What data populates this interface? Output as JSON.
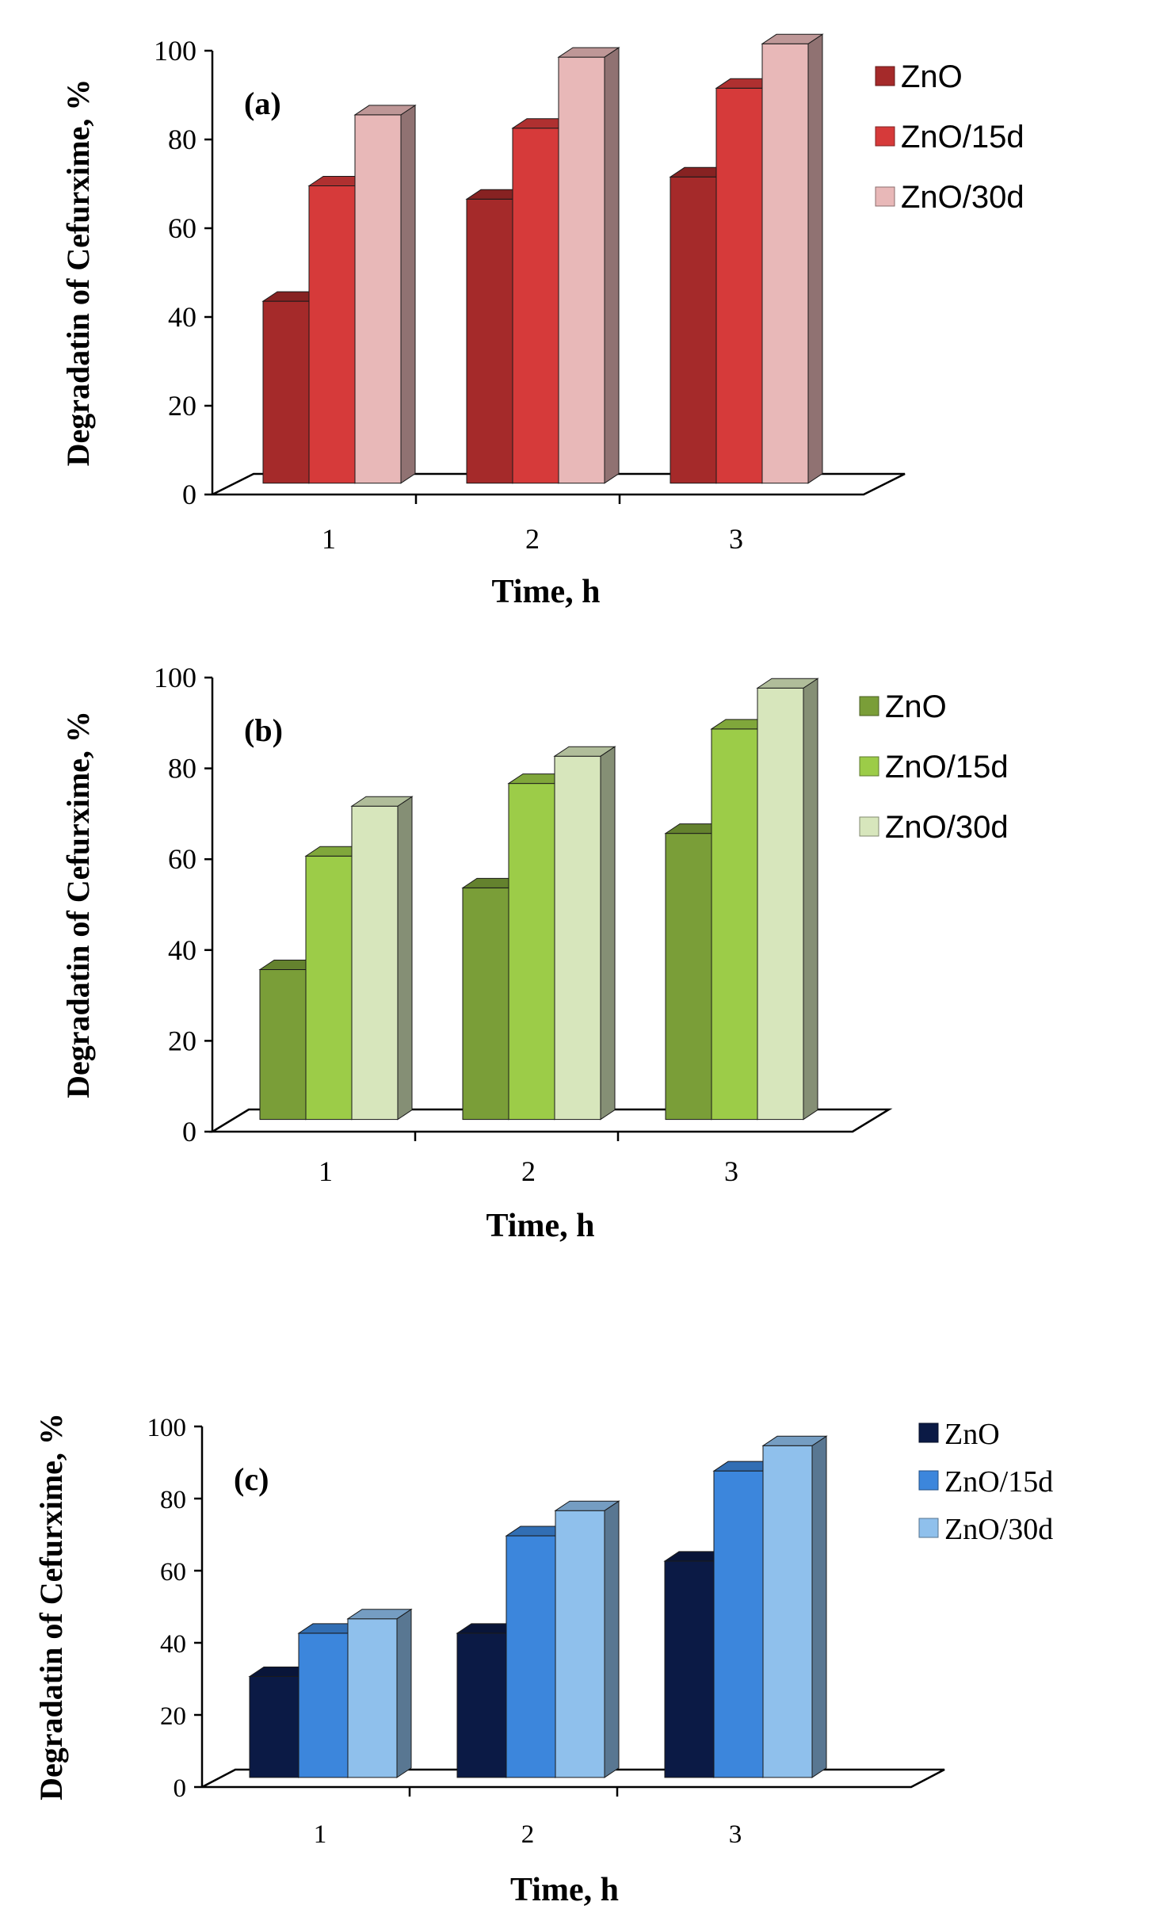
{
  "figure": {
    "description_free": true
  },
  "chart_data": [
    {
      "type": "bar",
      "panel_label": "(a)",
      "title": "",
      "xlabel": "Time, h",
      "ylabel": "Degradatin of Cefurxime, %",
      "categories": [
        "1",
        "2",
        "3"
      ],
      "yticks": [
        "0",
        "20",
        "40",
        "60",
        "80",
        "100"
      ],
      "ylim": [
        0,
        100
      ],
      "grid": false,
      "legend_position": "right",
      "series": [
        {
          "name": "ZnO",
          "color": "#a52a2a",
          "values": [
            41,
            64,
            69
          ]
        },
        {
          "name": "ZnO/15d",
          "color": "#d63a3a",
          "values": [
            67,
            80,
            89
          ]
        },
        {
          "name": "ZnO/30d",
          "color": "#e8b8b8",
          "values": [
            83,
            96,
            99
          ]
        }
      ]
    },
    {
      "type": "bar",
      "panel_label": "(b)",
      "title": "",
      "xlabel": "Time, h",
      "ylabel": "Degradatin of Cefurxime, %",
      "categories": [
        "1",
        "2",
        "3"
      ],
      "yticks": [
        "0",
        "20",
        "40",
        "60",
        "80",
        "100"
      ],
      "ylim": [
        0,
        100
      ],
      "grid": false,
      "legend_position": "right",
      "series": [
        {
          "name": "ZnO",
          "color": "#7a9e38",
          "values": [
            33,
            51,
            63
          ]
        },
        {
          "name": "ZnO/15d",
          "color": "#9ccc48",
          "values": [
            58,
            74,
            86
          ]
        },
        {
          "name": "ZnO/30d",
          "color": "#d7e6bc",
          "values": [
            69,
            80,
            95
          ]
        }
      ]
    },
    {
      "type": "bar",
      "panel_label": "(c)",
      "title": "",
      "xlabel": "Time, h",
      "ylabel": "Degradatin of Cefurxime, %",
      "categories": [
        "1",
        "2",
        "3"
      ],
      "yticks": [
        "0",
        "20",
        "40",
        "60",
        "80",
        "100"
      ],
      "ylim": [
        0,
        100
      ],
      "grid": false,
      "legend_position": "right",
      "series": [
        {
          "name": "ZnO",
          "color": "#0b1a45",
          "values": [
            28,
            40,
            60
          ]
        },
        {
          "name": "ZnO/15d",
          "color": "#3c86dc",
          "values": [
            40,
            67,
            85
          ]
        },
        {
          "name": "ZnO/30d",
          "color": "#8fc0ec",
          "values": [
            44,
            74,
            92
          ]
        }
      ]
    }
  ]
}
